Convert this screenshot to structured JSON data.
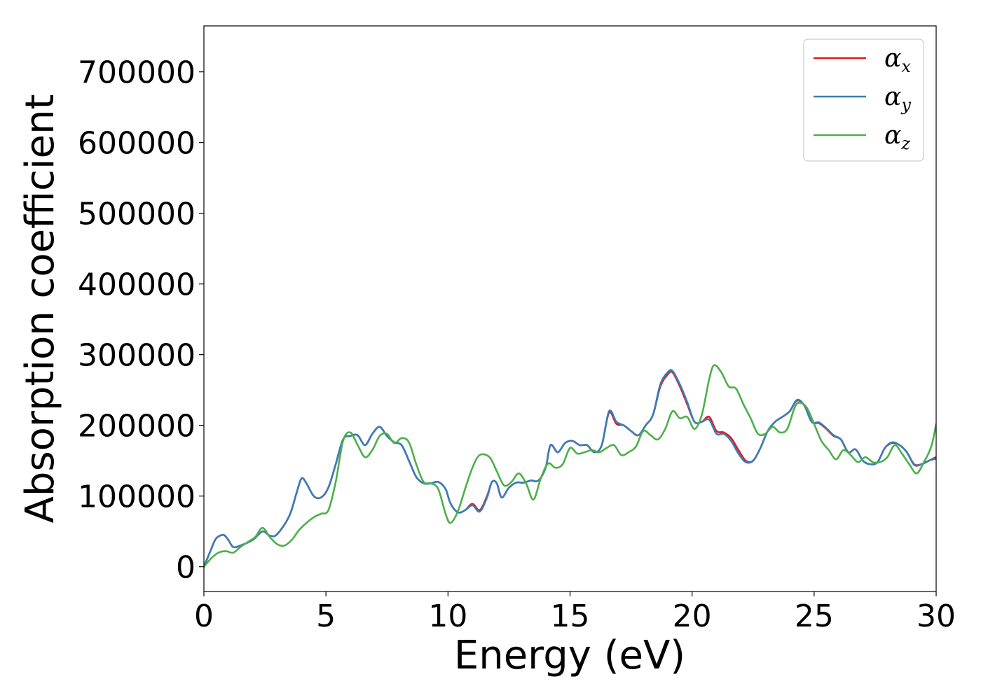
{
  "chart_data": {
    "type": "line",
    "xlabel": "Energy (eV)",
    "ylabel": "Absorption coefficient",
    "xlim": [
      0,
      30
    ],
    "ylim": [
      -35000,
      765000
    ],
    "x_ticks": [
      0,
      5,
      10,
      15,
      20,
      25,
      30
    ],
    "y_ticks": [
      0,
      100000,
      200000,
      300000,
      400000,
      500000,
      600000,
      700000
    ],
    "grid": false,
    "legend_position": "top-right",
    "series": [
      {
        "name": "α",
        "subscript": "x",
        "color": "#e41a1c",
        "x": [
          0,
          0.3,
          0.5,
          0.8,
          1.0,
          1.2,
          1.5,
          2.0,
          2.4,
          2.7,
          3.0,
          3.5,
          3.8,
          4.0,
          4.2,
          4.5,
          4.8,
          5.1,
          5.4,
          5.7,
          6.0,
          6.3,
          6.6,
          6.9,
          7.2,
          7.5,
          7.8,
          8.1,
          8.4,
          8.7,
          9.0,
          9.3,
          9.6,
          9.9,
          10.1,
          10.4,
          10.7,
          11.0,
          11.3,
          11.6,
          11.8,
          12.0,
          12.2,
          12.5,
          12.8,
          13.1,
          13.4,
          13.7,
          14.0,
          14.2,
          14.5,
          14.8,
          15.1,
          15.4,
          15.7,
          16.0,
          16.3,
          16.6,
          16.9,
          17.2,
          17.5,
          17.8,
          18.1,
          18.4,
          18.7,
          19.0,
          19.2,
          19.5,
          19.8,
          20.1,
          20.4,
          20.7,
          21.0,
          21.3,
          21.6,
          21.9,
          22.2,
          22.5,
          22.8,
          23.1,
          23.4,
          23.7,
          24.0,
          24.3,
          24.6,
          24.9,
          25.2,
          25.5,
          25.8,
          26.1,
          26.4,
          26.7,
          27.0,
          27.3,
          27.6,
          27.9,
          28.2,
          28.5,
          28.8,
          29.1,
          29.4,
          29.7,
          30.0
        ],
        "values": [
          0,
          25000,
          40000,
          45000,
          38000,
          28000,
          30000,
          38000,
          50000,
          44000,
          46000,
          72000,
          105000,
          125000,
          118000,
          100000,
          98000,
          112000,
          145000,
          180000,
          185000,
          186000,
          172000,
          188000,
          198000,
          185000,
          176000,
          172000,
          150000,
          127000,
          118000,
          118000,
          120000,
          110000,
          90000,
          77000,
          80000,
          89000,
          80000,
          100000,
          120000,
          118000,
          98000,
          112000,
          119000,
          119000,
          122000,
          122000,
          140000,
          172000,
          162000,
          175000,
          178000,
          172000,
          172000,
          162000,
          172000,
          218000,
          202000,
          200000,
          192000,
          186000,
          200000,
          215000,
          255000,
          272000,
          275000,
          255000,
          230000,
          205000,
          205000,
          212000,
          192000,
          190000,
          182000,
          165000,
          150000,
          150000,
          168000,
          192000,
          205000,
          212000,
          220000,
          235000,
          228000,
          205000,
          203000,
          195000,
          185000,
          180000,
          162000,
          166000,
          150000,
          145000,
          148000,
          168000,
          175000,
          172000,
          162000,
          145000,
          145000,
          150000,
          155000
        ]
      },
      {
        "name": "α",
        "subscript": "y",
        "color": "#377eb8",
        "x": [
          0,
          0.3,
          0.5,
          0.8,
          1.0,
          1.2,
          1.5,
          2.0,
          2.4,
          2.7,
          3.0,
          3.5,
          3.8,
          4.0,
          4.2,
          4.5,
          4.8,
          5.1,
          5.4,
          5.7,
          6.0,
          6.3,
          6.6,
          6.9,
          7.2,
          7.5,
          7.8,
          8.1,
          8.4,
          8.7,
          9.0,
          9.3,
          9.6,
          9.9,
          10.1,
          10.4,
          10.7,
          11.0,
          11.3,
          11.6,
          11.8,
          12.0,
          12.2,
          12.5,
          12.8,
          13.1,
          13.4,
          13.7,
          14.0,
          14.2,
          14.5,
          14.8,
          15.1,
          15.4,
          15.7,
          16.0,
          16.3,
          16.6,
          16.9,
          17.2,
          17.5,
          17.8,
          18.1,
          18.4,
          18.7,
          19.0,
          19.2,
          19.5,
          19.8,
          20.1,
          20.4,
          20.7,
          21.0,
          21.3,
          21.6,
          21.9,
          22.2,
          22.5,
          22.8,
          23.1,
          23.4,
          23.7,
          24.0,
          24.3,
          24.6,
          24.9,
          25.2,
          25.5,
          25.8,
          26.1,
          26.4,
          26.7,
          27.0,
          27.3,
          27.6,
          27.9,
          28.2,
          28.5,
          28.8,
          29.1,
          29.4,
          29.7,
          30.0
        ],
        "values": [
          0,
          25000,
          40000,
          45000,
          38000,
          28000,
          30000,
          38000,
          50000,
          44000,
          46000,
          72000,
          105000,
          125000,
          118000,
          100000,
          98000,
          112000,
          145000,
          180000,
          185000,
          186000,
          172000,
          188000,
          198000,
          185000,
          176000,
          172000,
          150000,
          127000,
          118000,
          118000,
          120000,
          110000,
          90000,
          77000,
          80000,
          87000,
          78000,
          98000,
          120000,
          118000,
          98000,
          112000,
          119000,
          119000,
          122000,
          122000,
          140000,
          172000,
          162000,
          175000,
          178000,
          172000,
          172000,
          162000,
          172000,
          220000,
          205000,
          200000,
          192000,
          186000,
          200000,
          215000,
          258000,
          275000,
          277000,
          258000,
          233000,
          205000,
          205000,
          208000,
          188000,
          188000,
          178000,
          160000,
          148000,
          150000,
          168000,
          192000,
          205000,
          212000,
          220000,
          236000,
          228000,
          205000,
          204000,
          196000,
          186000,
          180000,
          162000,
          166000,
          150000,
          145000,
          148000,
          168000,
          176000,
          172000,
          162000,
          144000,
          145000,
          150000,
          153000
        ]
      },
      {
        "name": "α",
        "subscript": "z",
        "color": "#4daf4a",
        "x": [
          0,
          0.3,
          0.6,
          0.9,
          1.2,
          1.5,
          1.8,
          2.1,
          2.4,
          2.7,
          3.0,
          3.3,
          3.6,
          3.9,
          4.2,
          4.5,
          4.8,
          5.1,
          5.4,
          5.7,
          6.0,
          6.3,
          6.6,
          6.9,
          7.2,
          7.5,
          7.8,
          8.1,
          8.4,
          8.7,
          9.0,
          9.3,
          9.6,
          9.9,
          10.1,
          10.4,
          10.7,
          11.0,
          11.3,
          11.7,
          12.0,
          12.3,
          12.6,
          12.9,
          13.2,
          13.5,
          13.8,
          14.1,
          14.4,
          14.7,
          15.0,
          15.3,
          15.6,
          15.9,
          16.2,
          16.5,
          16.8,
          17.1,
          17.4,
          17.7,
          18.0,
          18.3,
          18.6,
          18.9,
          19.2,
          19.5,
          19.8,
          20.1,
          20.4,
          20.7,
          20.9,
          21.2,
          21.5,
          21.8,
          22.1,
          22.4,
          22.7,
          23.0,
          23.3,
          23.6,
          23.9,
          24.2,
          24.4,
          24.7,
          25.0,
          25.3,
          25.6,
          25.9,
          26.2,
          26.5,
          26.8,
          27.1,
          27.4,
          27.7,
          28.0,
          28.3,
          28.6,
          28.9,
          29.2,
          29.5,
          29.8,
          30.0
        ],
        "values": [
          0,
          12000,
          20000,
          22000,
          20000,
          28000,
          35000,
          42000,
          55000,
          42000,
          32000,
          30000,
          38000,
          52000,
          62000,
          70000,
          75000,
          80000,
          120000,
          178000,
          190000,
          172000,
          155000,
          165000,
          185000,
          188000,
          175000,
          182000,
          176000,
          145000,
          120000,
          118000,
          110000,
          75000,
          62000,
          78000,
          110000,
          140000,
          158000,
          155000,
          135000,
          115000,
          120000,
          132000,
          118000,
          95000,
          125000,
          146000,
          140000,
          145000,
          168000,
          160000,
          162000,
          165000,
          162000,
          168000,
          172000,
          158000,
          162000,
          170000,
          192000,
          186000,
          180000,
          195000,
          220000,
          210000,
          212000,
          195000,
          215000,
          265000,
          285000,
          275000,
          255000,
          252000,
          230000,
          210000,
          188000,
          188000,
          198000,
          190000,
          195000,
          225000,
          232000,
          225000,
          202000,
          178000,
          165000,
          152000,
          165000,
          158000,
          148000,
          155000,
          148000,
          148000,
          155000,
          172000,
          160000,
          145000,
          132000,
          148000,
          170000,
          202000
        ]
      }
    ]
  }
}
